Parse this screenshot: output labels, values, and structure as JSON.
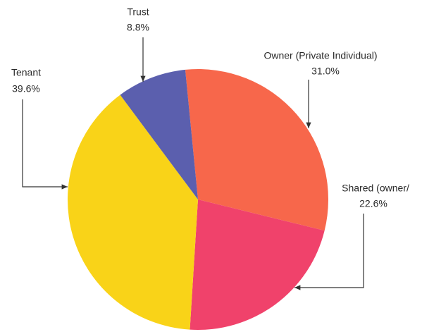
{
  "chart_data": {
    "type": "pie",
    "categories": [
      "Owner (Private Individual)",
      "Shared (owner/",
      "Tenant",
      "Trust"
    ],
    "values": [
      31.0,
      22.6,
      39.6,
      8.8
    ],
    "value_labels": [
      "31.0%",
      "22.6%",
      "39.6%",
      "8.8%"
    ],
    "colors": [
      "#f7674b",
      "#f0426b",
      "#f9d318",
      "#5b5fae"
    ]
  }
}
